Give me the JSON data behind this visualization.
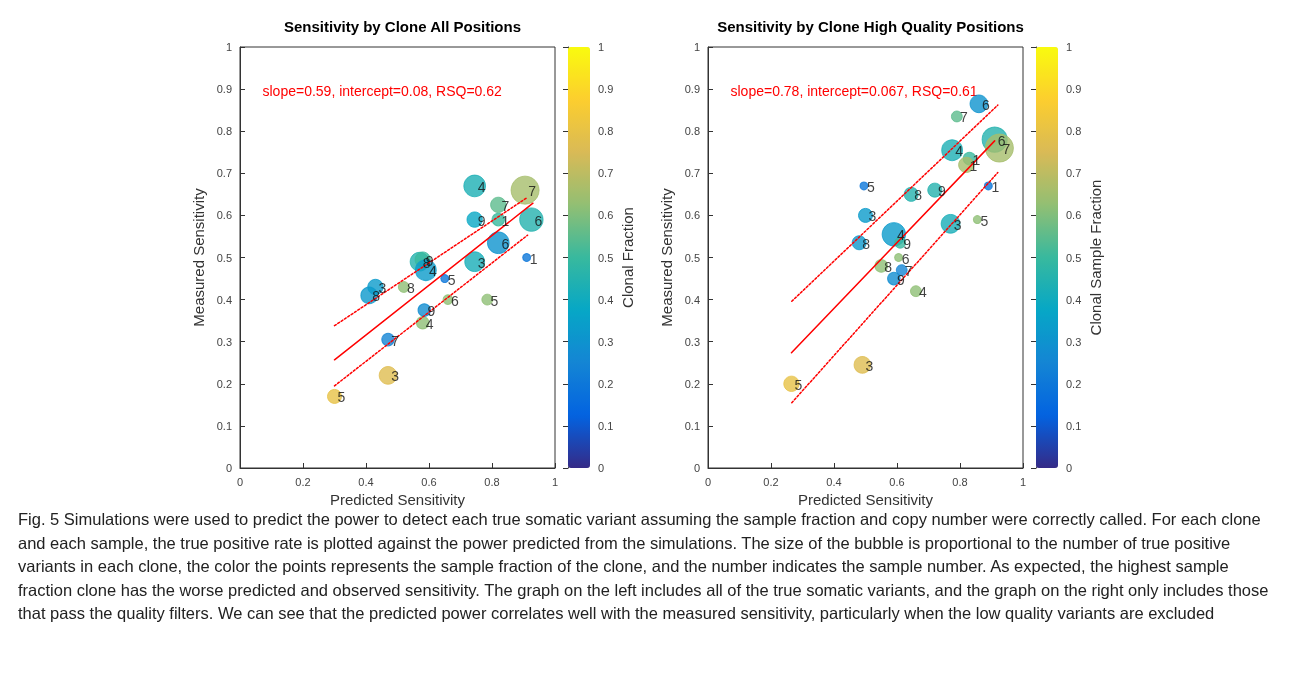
{
  "chart_data": [
    {
      "type": "bubble",
      "title": "Sensitivity by Clone All Positions",
      "xlabel": "Predicted Sensitivity",
      "ylabel": "Measured Sensitivity",
      "clabel": "Clonal Fraction",
      "xlim": [
        0,
        1
      ],
      "xticks": [
        0,
        0.2,
        0.4,
        0.6,
        0.8,
        1
      ],
      "ylim": [
        0,
        1
      ],
      "yticks": [
        0,
        0.1,
        0.2,
        0.3,
        0.4,
        0.5,
        0.6,
        0.7,
        0.8,
        0.9,
        1
      ],
      "clim": [
        0,
        1
      ],
      "cticks": [
        0,
        0.1,
        0.2,
        0.3,
        0.4,
        0.5,
        0.6,
        0.7,
        0.8,
        0.9,
        1
      ],
      "series": [
        {
          "type": "bubble",
          "x": [
            0.3,
            0.47,
            0.47,
            0.58,
            0.585,
            0.41,
            0.43,
            0.52,
            0.57,
            0.58,
            0.59,
            0.65,
            0.66,
            0.785,
            0.745,
            0.82,
            0.91,
            0.745,
            0.82,
            0.82,
            0.745,
            0.905,
            0.925
          ],
          "values": [
            0.17,
            0.22,
            0.305,
            0.345,
            0.375,
            0.41,
            0.43,
            0.43,
            0.49,
            0.495,
            0.47,
            0.45,
            0.4,
            0.4,
            0.49,
            0.535,
            0.5,
            0.59,
            0.59,
            0.625,
            0.67,
            0.66,
            0.59
          ],
          "sizes": [
            0.25,
            0.4,
            0.2,
            0.2,
            0.2,
            0.35,
            0.3,
            0.15,
            0.45,
            0.3,
            0.55,
            0.08,
            0.12,
            0.15,
            0.5,
            0.6,
            0.08,
            0.3,
            0.2,
            0.3,
            0.6,
            1,
            0.7
          ],
          "cvalues": [
            0.8,
            0.77,
            0.25,
            0.62,
            0.28,
            0.32,
            0.33,
            0.62,
            0.45,
            0.5,
            0.33,
            0.2,
            0.62,
            0.62,
            0.42,
            0.3,
            0.2,
            0.38,
            0.5,
            0.55,
            0.43,
            0.66,
            0.45
          ],
          "colors": [
            "#e7c246",
            "#dfbd50",
            "#1485d4",
            "#90bf75",
            "#118dd1",
            "#0c98cc",
            "#0b9bcb",
            "#90bf75",
            "#24b2ae",
            "#38b99e",
            "#0b9bcb",
            "#0d77d9",
            "#90bf75",
            "#90bf75",
            "#18aeb7",
            "#0e93ce",
            "#0d77d9",
            "#08a8c4",
            "#38b99e",
            "#5cbb8d",
            "#1cafb5",
            "#a6be6b",
            "#24b2ae"
          ]
        },
        {
          "type": "line",
          "color": "#ff0000",
          "x": [
            0.3,
            0.93
          ],
          "values": [
            0.257,
            0.629
          ]
        },
        {
          "type": "line",
          "color": "#ff0000",
          "line_style": "dotted",
          "x": [
            0.3,
            0.913
          ],
          "values": [
            0.338,
            0.643
          ]
        },
        {
          "type": "line",
          "color": "#ff0000",
          "line_style": "dotted",
          "x": [
            0.3,
            0.913
          ],
          "values": [
            0.195,
            0.553
          ]
        }
      ],
      "annotations": [
        "slope=0.59, intercept=0.08, RSQ=0.62",
        {
          "text": "5",
          "x": 0.3,
          "y": 0.17
        },
        {
          "text": "3",
          "x": 0.47,
          "y": 0.22
        },
        {
          "text": "7",
          "x": 0.47,
          "y": 0.305
        },
        {
          "text": "4",
          "x": 0.58,
          "y": 0.345
        },
        {
          "text": "9",
          "x": 0.585,
          "y": 0.375
        },
        {
          "text": "8",
          "x": 0.41,
          "y": 0.41
        },
        {
          "text": "3",
          "x": 0.43,
          "y": 0.43
        },
        {
          "text": "8",
          "x": 0.52,
          "y": 0.43
        },
        {
          "text": "8",
          "x": 0.57,
          "y": 0.49
        },
        {
          "text": "9",
          "x": 0.58,
          "y": 0.495
        },
        {
          "text": "4",
          "x": 0.59,
          "y": 0.47
        },
        {
          "text": "5",
          "x": 0.65,
          "y": 0.45
        },
        {
          "text": "6",
          "x": 0.66,
          "y": 0.4
        },
        {
          "text": "5",
          "x": 0.785,
          "y": 0.4
        },
        {
          "text": "3",
          "x": 0.745,
          "y": 0.49
        },
        {
          "text": "6",
          "x": 0.82,
          "y": 0.535
        },
        {
          "text": "1",
          "x": 0.91,
          "y": 0.5
        },
        {
          "text": "9",
          "x": 0.745,
          "y": 0.59
        },
        {
          "text": "1",
          "x": 0.82,
          "y": 0.59
        },
        {
          "text": "7",
          "x": 0.82,
          "y": 0.625
        },
        {
          "text": "4",
          "x": 0.745,
          "y": 0.67
        },
        {
          "text": "7",
          "x": 0.905,
          "y": 0.66
        },
        {
          "text": "6",
          "x": 0.925,
          "y": 0.59
        }
      ]
    },
    {
      "type": "bubble",
      "title": "Sensitivity by Clone High Quality Positions",
      "xlabel": "Predicted Sensitivity",
      "ylabel": "Measured Sensitivity",
      "clabel": "Clonal Sample Fraction",
      "xlim": [
        0,
        1
      ],
      "xticks": [
        0,
        0.2,
        0.4,
        0.6,
        0.8,
        1
      ],
      "ylim": [
        0,
        1
      ],
      "yticks": [
        0,
        0.1,
        0.2,
        0.3,
        0.4,
        0.5,
        0.6,
        0.7,
        0.8,
        0.9,
        1
      ],
      "clim": [
        0,
        1
      ],
      "cticks": [
        0,
        0.1,
        0.2,
        0.3,
        0.4,
        0.5,
        0.6,
        0.7,
        0.8,
        0.9,
        1
      ],
      "series": [
        {
          "type": "bubble",
          "x": [
            0.265,
            0.49,
            0.495,
            0.5,
            0.48,
            0.59,
            0.61,
            0.605,
            0.55,
            0.615,
            0.59,
            0.66,
            0.645,
            0.72,
            0.77,
            0.855,
            0.89,
            0.83,
            0.82,
            0.775,
            0.79,
            0.86,
            0.91,
            0.925
          ],
          "values": [
            0.2,
            0.245,
            0.67,
            0.6,
            0.535,
            0.555,
            0.535,
            0.5,
            0.48,
            0.47,
            0.45,
            0.42,
            0.65,
            0.66,
            0.58,
            0.59,
            0.67,
            0.735,
            0.72,
            0.755,
            0.835,
            0.865,
            0.78,
            0.76
          ],
          "sizes": [
            0.3,
            0.35,
            0.08,
            0.25,
            0.25,
            0.7,
            0.15,
            0.08,
            0.2,
            0.15,
            0.2,
            0.15,
            0.25,
            0.25,
            0.45,
            0.08,
            0.08,
            0.2,
            0.3,
            0.55,
            0.15,
            0.4,
            0.8,
            1
          ],
          "cvalues": [
            0.8,
            0.77,
            0.2,
            0.33,
            0.32,
            0.33,
            0.5,
            0.62,
            0.62,
            0.25,
            0.28,
            0.62,
            0.45,
            0.45,
            0.42,
            0.62,
            0.2,
            0.5,
            0.66,
            0.43,
            0.55,
            0.3,
            0.45,
            0.66
          ],
          "colors": [
            "#e7c246",
            "#dfbd50",
            "#0d77d9",
            "#0b9bcb",
            "#0c98cc",
            "#0b9bcb",
            "#38b99e",
            "#90bf75",
            "#90bf75",
            "#1485d4",
            "#118dd1",
            "#90bf75",
            "#24b2ae",
            "#24b2ae",
            "#18aeb7",
            "#90bf75",
            "#0d77d9",
            "#38b99e",
            "#a6be6b",
            "#1cafb5",
            "#5cbb8d",
            "#0e93ce",
            "#24b2ae",
            "#a6be6b"
          ]
        },
        {
          "type": "line",
          "color": "#ff0000",
          "x": [
            0.265,
            0.91
          ],
          "values": [
            0.274,
            0.777
          ]
        },
        {
          "type": "line",
          "color": "#ff0000",
          "line_style": "dotted",
          "x": [
            0.266,
            0.92
          ],
          "values": [
            0.396,
            0.862
          ]
        },
        {
          "type": "line",
          "color": "#ff0000",
          "line_style": "dotted",
          "x": [
            0.266,
            0.92
          ],
          "values": [
            0.155,
            0.702
          ]
        }
      ],
      "annotations": [
        "slope=0.78, intercept=0.067, RSQ=0.61",
        "Fig. 5 Simulations were used to predict the power to detect each true somatic variant assuming the sample fraction and copy number were correctly called. For each clone and each sample, the true positive rate is plotted against the power predicted from the simulations. The size of the bubble is proportional to the number of true positive variants in each clone, the color the points represents the sample fraction of the clone, and the number indicates the sample number. As expected, the highest sample fraction clone has the worse predicted and observed sensitivity. The graph on the left includes all of the true somatic variants, and the graph on the right only includes those that pass the quality filters. We can see that the predicted power correlates well with the measured sensitivity, particularly when the low quality variants are excluded",
        {
          "text": "5",
          "x": 0.265,
          "y": 0.2
        },
        {
          "text": "3",
          "x": 0.49,
          "y": 0.245
        },
        {
          "text": "5",
          "x": 0.495,
          "y": 0.67
        },
        {
          "text": "3",
          "x": 0.5,
          "y": 0.6
        },
        {
          "text": "8",
          "x": 0.48,
          "y": 0.535
        },
        {
          "text": "4",
          "x": 0.59,
          "y": 0.555
        },
        {
          "text": "9",
          "x": 0.61,
          "y": 0.535
        },
        {
          "text": "6",
          "x": 0.605,
          "y": 0.5
        },
        {
          "text": "8",
          "x": 0.55,
          "y": 0.48
        },
        {
          "text": "7",
          "x": 0.615,
          "y": 0.47
        },
        {
          "text": "9",
          "x": 0.59,
          "y": 0.45
        },
        {
          "text": "4",
          "x": 0.66,
          "y": 0.42
        },
        {
          "text": "8",
          "x": 0.645,
          "y": 0.65
        },
        {
          "text": "9",
          "x": 0.72,
          "y": 0.66
        },
        {
          "text": "3",
          "x": 0.77,
          "y": 0.58
        },
        {
          "text": "5",
          "x": 0.855,
          "y": 0.59
        },
        {
          "text": "1",
          "x": 0.89,
          "y": 0.67
        },
        {
          "text": "1",
          "x": 0.83,
          "y": 0.735
        },
        {
          "text": "1",
          "x": 0.82,
          "y": 0.72
        },
        {
          "text": "4",
          "x": 0.775,
          "y": 0.755
        },
        {
          "text": "7",
          "x": 0.79,
          "y": 0.835
        },
        {
          "text": "6",
          "x": 0.86,
          "y": 0.865
        },
        {
          "text": "6",
          "x": 0.91,
          "y": 0.78
        },
        {
          "text": "7",
          "x": 0.925,
          "y": 0.76
        }
      ]
    }
  ]
}
